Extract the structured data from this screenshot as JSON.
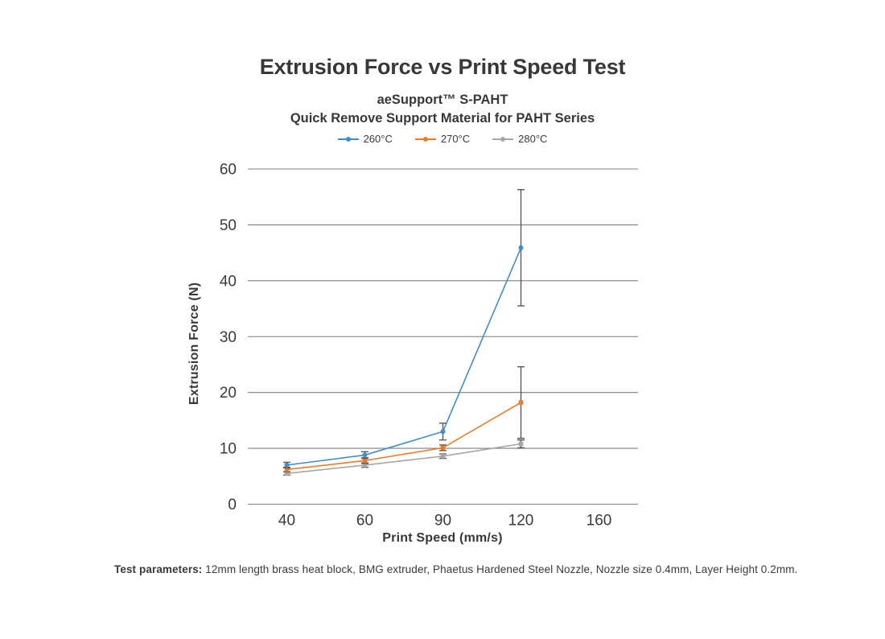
{
  "chart_data": {
    "type": "line",
    "title": "Extrusion Force vs Print Speed Test",
    "subtitle": "aeSupport™  S-PAHT",
    "subtitle2": "Quick Remove Support Material for PAHT Series",
    "xlabel": "Print Speed (mm/s)",
    "ylabel": "Extrusion Force (N)",
    "categories": [
      "40",
      "60",
      "90",
      "120",
      "160"
    ],
    "series": [
      {
        "name": "260°C",
        "color": "#3f8ecb",
        "marker": "circle",
        "values": [
          7.0,
          8.8,
          13.0,
          45.9
        ],
        "errors": [
          0.5,
          0.6,
          1.5,
          10.4
        ]
      },
      {
        "name": "270°C",
        "color": "#ee7b23",
        "marker": "square",
        "values": [
          6.2,
          7.8,
          10.1,
          18.2
        ],
        "errors": [
          0.4,
          0.5,
          0.5,
          6.4
        ]
      },
      {
        "name": "280°C",
        "color": "#a6a6a6",
        "marker": "square",
        "values": [
          5.5,
          7.0,
          8.6,
          10.8
        ],
        "errors": [
          0.3,
          0.4,
          0.4,
          0.7
        ]
      }
    ],
    "ylim": [
      0,
      60
    ],
    "yticks": [
      0,
      10,
      20,
      30,
      40,
      50,
      60
    ],
    "grid": true,
    "legend_position": "top",
    "error_bar_color": "#595959",
    "gridline_color": "#7f7f7f",
    "text_color": "#3a3a3a"
  },
  "footnote": {
    "label": "Test parameters:",
    "text": " 12mm length brass heat block, BMG extruder, Phaetus Hardened Steel Nozzle, Nozzle size 0.4mm, Layer Height 0.2mm."
  }
}
